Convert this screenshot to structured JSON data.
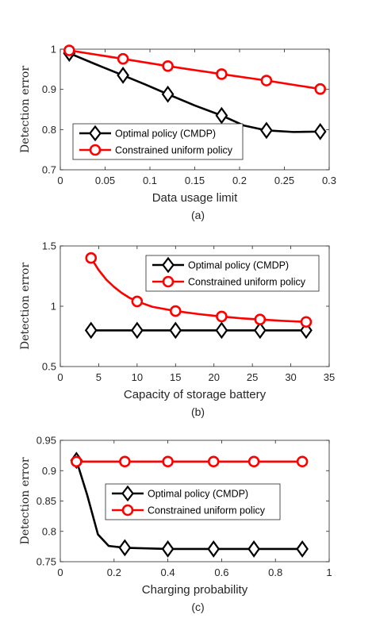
{
  "chart_data": [
    {
      "type": "line",
      "caption": "(a)",
      "xlabel": "Data usage limit",
      "ylabel": "Detection error",
      "xlim": [
        0,
        0.3
      ],
      "ylim": [
        0.7,
        1
      ],
      "xticks": [
        "0",
        "0.05",
        "0.1",
        "0.15",
        "0.2",
        "0.25",
        "0.3"
      ],
      "yticks": [
        "0.7",
        "0.8",
        "0.9",
        "1"
      ],
      "legend_placement": "center-left",
      "series": [
        {
          "name": "Optimal policy (CMDP)",
          "color": "#000000",
          "marker": "diamond",
          "x": [
            0.01,
            0.07,
            0.12,
            0.18,
            0.23,
            0.29
          ],
          "y": [
            0.99,
            0.935,
            0.888,
            0.835,
            0.798,
            0.795
          ],
          "curve": [
            [
              0.01,
              0.99
            ],
            [
              0.04,
              0.962
            ],
            [
              0.07,
              0.935
            ],
            [
              0.095,
              0.912
            ],
            [
              0.12,
              0.888
            ],
            [
              0.15,
              0.86
            ],
            [
              0.18,
              0.835
            ],
            [
              0.205,
              0.81
            ],
            [
              0.23,
              0.798
            ],
            [
              0.26,
              0.794
            ],
            [
              0.29,
              0.795
            ]
          ]
        },
        {
          "name": "Constrained uniform policy",
          "color": "#ff0000",
          "marker": "circle",
          "x": [
            0.01,
            0.07,
            0.12,
            0.18,
            0.23,
            0.29
          ],
          "y": [
            0.997,
            0.976,
            0.958,
            0.938,
            0.922,
            0.901
          ]
        }
      ]
    },
    {
      "type": "line",
      "caption": "(b)",
      "xlabel": "Capacity of storage battery",
      "ylabel": "Detection error",
      "xlim": [
        0,
        35
      ],
      "ylim": [
        0.5,
        1.5
      ],
      "xticks": [
        "0",
        "5",
        "10",
        "15",
        "20",
        "25",
        "30",
        "35"
      ],
      "yticks": [
        "0.5",
        "1",
        "1.5"
      ],
      "legend_placement": "top-right",
      "series": [
        {
          "name": "Optimal policy (CMDP)",
          "color": "#000000",
          "marker": "diamond",
          "x": [
            4,
            10,
            15,
            21,
            26,
            32
          ],
          "y": [
            0.8,
            0.8,
            0.8,
            0.8,
            0.8,
            0.8
          ]
        },
        {
          "name": "Constrained uniform policy",
          "color": "#ff0000",
          "marker": "circle",
          "x": [
            4,
            10,
            15,
            21,
            26,
            32
          ],
          "y": [
            1.4,
            1.04,
            0.96,
            0.915,
            0.89,
            0.87
          ],
          "curve": [
            [
              4,
              1.4
            ],
            [
              5,
              1.3
            ],
            [
              6,
              1.22
            ],
            [
              7,
              1.16
            ],
            [
              8,
              1.11
            ],
            [
              9,
              1.07
            ],
            [
              10,
              1.04
            ],
            [
              12,
              0.995
            ],
            [
              15,
              0.96
            ],
            [
              18,
              0.935
            ],
            [
              21,
              0.915
            ],
            [
              23.5,
              0.9
            ],
            [
              26,
              0.89
            ],
            [
              29,
              0.879
            ],
            [
              32,
              0.87
            ]
          ]
        }
      ]
    },
    {
      "type": "line",
      "caption": "(c)",
      "xlabel": "Charging probability",
      "ylabel": "Detection error",
      "xlim": [
        0,
        1
      ],
      "ylim": [
        0.75,
        0.95
      ],
      "xticks": [
        "0",
        "0.2",
        "0.4",
        "0.6",
        "0.8",
        "1"
      ],
      "yticks": [
        "0.75",
        "0.8",
        "0.85",
        "0.9",
        "0.95"
      ],
      "legend_placement": "center-right",
      "series": [
        {
          "name": "Optimal policy (CMDP)",
          "color": "#000000",
          "marker": "diamond",
          "x": [
            0.06,
            0.24,
            0.4,
            0.57,
            0.72,
            0.9
          ],
          "y": [
            0.917,
            0.773,
            0.771,
            0.771,
            0.771,
            0.771
          ],
          "curve": [
            [
              0.06,
              0.917
            ],
            [
              0.1,
              0.86
            ],
            [
              0.14,
              0.795
            ],
            [
              0.18,
              0.776
            ],
            [
              0.24,
              0.773
            ],
            [
              0.4,
              0.771
            ],
            [
              0.57,
              0.771
            ],
            [
              0.72,
              0.771
            ],
            [
              0.9,
              0.771
            ]
          ]
        },
        {
          "name": "Constrained uniform policy",
          "color": "#ff0000",
          "marker": "circle",
          "x": [
            0.06,
            0.24,
            0.4,
            0.57,
            0.72,
            0.9
          ],
          "y": [
            0.915,
            0.915,
            0.915,
            0.915,
            0.915,
            0.915
          ]
        }
      ]
    }
  ]
}
